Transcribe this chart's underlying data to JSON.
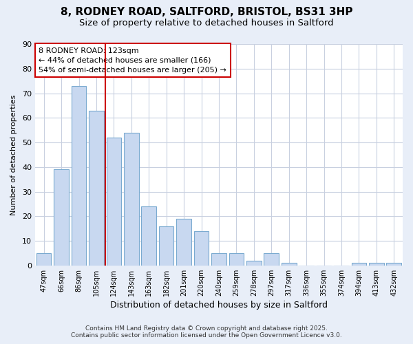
{
  "title_line1": "8, RODNEY ROAD, SALTFORD, BRISTOL, BS31 3HP",
  "title_line2": "Size of property relative to detached houses in Saltford",
  "xlabel": "Distribution of detached houses by size in Saltford",
  "ylabel": "Number of detached properties",
  "x_labels": [
    "47sqm",
    "66sqm",
    "86sqm",
    "105sqm",
    "124sqm",
    "143sqm",
    "163sqm",
    "182sqm",
    "201sqm",
    "220sqm",
    "240sqm",
    "259sqm",
    "278sqm",
    "297sqm",
    "317sqm",
    "336sqm",
    "355sqm",
    "374sqm",
    "394sqm",
    "413sqm",
    "432sqm"
  ],
  "values": [
    5,
    39,
    73,
    63,
    52,
    54,
    24,
    16,
    19,
    14,
    5,
    5,
    2,
    5,
    1,
    0,
    0,
    0,
    1,
    1,
    1
  ],
  "bar_color": "#c8d8f0",
  "bar_edge_color": "#7aaad0",
  "vline_index": 4,
  "vline_color": "#cc0000",
  "annotation_text": "8 RODNEY ROAD: 123sqm\n← 44% of detached houses are smaller (166)\n54% of semi-detached houses are larger (205) →",
  "annotation_box_color": "#ffffff",
  "annotation_border_color": "#cc0000",
  "ylim": [
    0,
    90
  ],
  "yticks": [
    0,
    10,
    20,
    30,
    40,
    50,
    60,
    70,
    80,
    90
  ],
  "grid_color": "#c8d0e0",
  "bg_color": "#ffffff",
  "fig_bg_color": "#e8eef8",
  "footer_line1": "Contains HM Land Registry data © Crown copyright and database right 2025.",
  "footer_line2": "Contains public sector information licensed under the Open Government Licence v3.0."
}
